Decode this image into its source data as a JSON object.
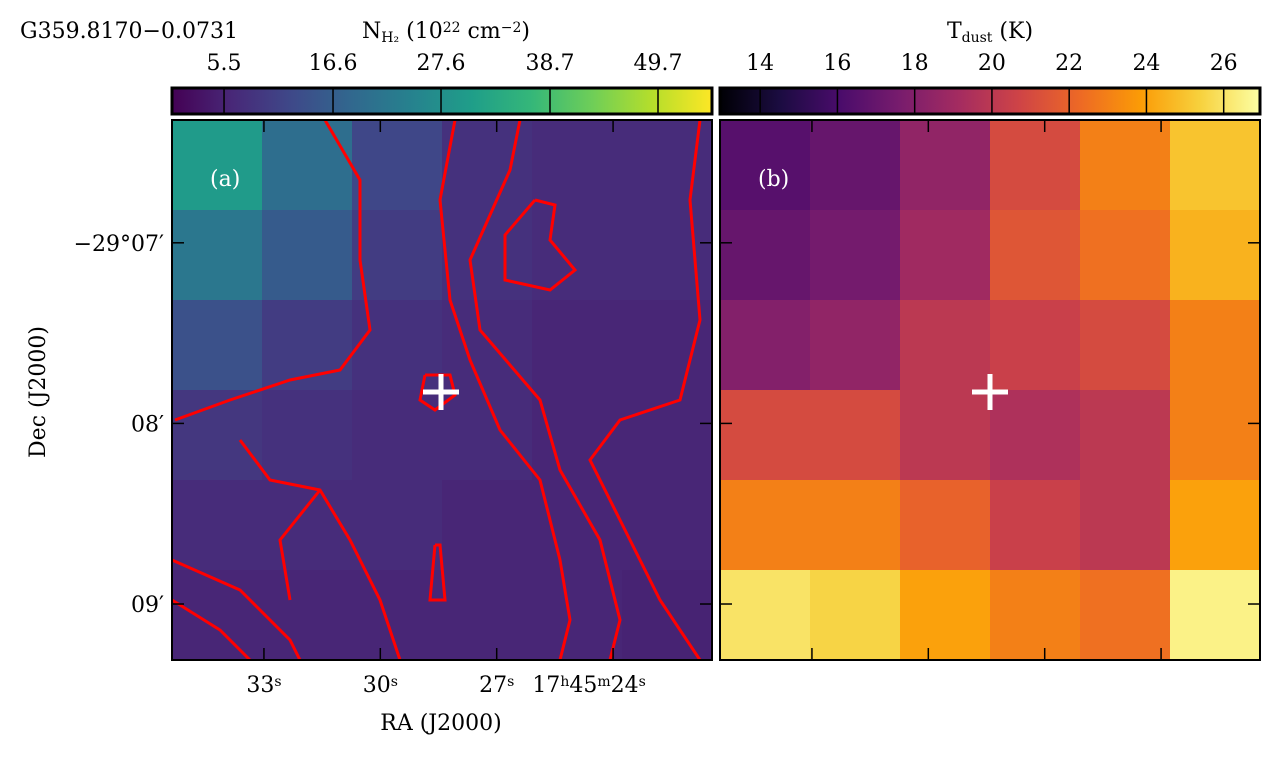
{
  "source": "G359.8170−0.0731",
  "x_axis": {
    "label": "RA (J2000)",
    "lim": [
      35.37,
      21.45
    ],
    "ticks": [
      {
        "value": 33,
        "label": [
          {
            "t": "33"
          },
          {
            "t": "s",
            "pos": "sup"
          }
        ]
      },
      {
        "value": 30,
        "label": [
          {
            "t": "30"
          },
          {
            "t": "s",
            "pos": "sup"
          }
        ]
      },
      {
        "value": 27,
        "label": [
          {
            "t": "27"
          },
          {
            "t": "s",
            "pos": "sup"
          }
        ]
      },
      {
        "value": 24,
        "label": [
          {
            "t": "17"
          },
          {
            "t": "h",
            "pos": "sup"
          },
          {
            "t": "45"
          },
          {
            "t": "m",
            "pos": "sup"
          },
          {
            "t": "24"
          },
          {
            "t": "s",
            "pos": "sup"
          }
        ]
      }
    ]
  },
  "y_axis": {
    "label": "Dec (J2000)",
    "lim": [
      6.32,
      9.31
    ],
    "ticks": [
      {
        "value": 7,
        "label": "−29°07′"
      },
      {
        "value": 8,
        "label": "08′"
      },
      {
        "value": 9,
        "label": "09′"
      }
    ]
  },
  "panels": [
    {
      "label": "(a)",
      "colormap": "viridis",
      "colorbar": {
        "title": [
          {
            "t": "N"
          },
          {
            "t": "H₂",
            "pos": "sub"
          },
          {
            "t": " (10"
          },
          {
            "t": "22",
            "pos": "sup"
          },
          {
            "t": " cm"
          },
          {
            "t": "−2",
            "pos": "sup"
          },
          {
            "t": ")"
          }
        ],
        "lim": [
          0.2,
          55.2
        ],
        "ticks": [
          5.5,
          16.6,
          27.6,
          38.7,
          49.7
        ]
      },
      "map": {
        "values": [
          [
            30,
            20,
            12,
            8,
            7,
            7
          ],
          [
            22,
            16,
            10,
            8,
            7,
            7
          ],
          [
            14,
            10,
            8,
            7,
            6,
            6
          ],
          [
            9,
            8,
            7,
            7,
            6,
            6
          ],
          [
            7,
            7,
            7,
            6,
            6,
            6
          ],
          [
            6,
            6,
            6,
            6,
            6,
            5.5
          ]
        ]
      }
    },
    {
      "label": "(b)",
      "colormap": "inferno",
      "colorbar": {
        "title": [
          {
            "t": "T"
          },
          {
            "t": "dust",
            "pos": "sub"
          },
          {
            "t": " (K)"
          }
        ],
        "lim": [
          12.96,
          26.94
        ],
        "ticks": [
          14,
          16,
          18,
          20,
          22,
          24,
          26
        ]
      },
      "map": {
        "values": [
          [
            16.5,
            17,
            18.5,
            21,
            23,
            25
          ],
          [
            17,
            17.5,
            19,
            21.5,
            22.5,
            24.5
          ],
          [
            18,
            18.5,
            20,
            20.5,
            21,
            23
          ],
          [
            21,
            21,
            20,
            19.5,
            20,
            23
          ],
          [
            23,
            23,
            22,
            20.5,
            20,
            24
          ],
          [
            26,
            25.5,
            24,
            23,
            22.5,
            26.5
          ]
        ]
      }
    }
  ]
}
